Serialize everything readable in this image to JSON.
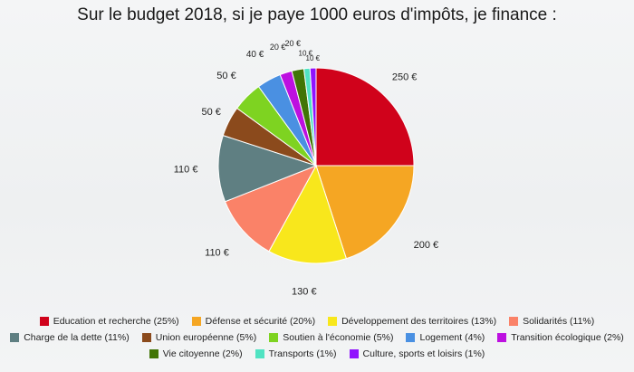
{
  "chart_data": {
    "type": "pie",
    "title": "Sur le budget 2018, si je paye 1000 euros d'impôts, je finance :",
    "unit_suffix": " €",
    "slices": [
      {
        "label": "Education et recherche (25%)",
        "value": 250,
        "data_label": "250 €",
        "color": "#d0021b"
      },
      {
        "label": "Défense et sécurité (20%)",
        "value": 200,
        "data_label": "200 €",
        "color": "#f5a623"
      },
      {
        "label": "Développement des territoires (13%)",
        "value": 130,
        "data_label": "130 €",
        "color": "#f8e71c"
      },
      {
        "label": "Solidarités (11%)",
        "value": 110,
        "data_label": "110 €",
        "color": "#fa8268"
      },
      {
        "label": "Charge de la dette (11%)",
        "value": 110,
        "data_label": "110 €",
        "color": "#5f7f82"
      },
      {
        "label": "Union européenne (5%)",
        "value": 50,
        "data_label": "50 €",
        "color": "#8b4a1c"
      },
      {
        "label": "Soutien à l'économie (5%)",
        "value": 50,
        "data_label": "50 €",
        "color": "#7ed321"
      },
      {
        "label": "Logement (4%)",
        "value": 40,
        "data_label": "40 €",
        "color": "#4a90e2"
      },
      {
        "label": "Transition écologique (2%)",
        "value": 20,
        "data_label": "20 €",
        "color": "#bd10e0"
      },
      {
        "label": "Vie citoyenne (2%)",
        "value": 20,
        "data_label": "20 €",
        "color": "#417505"
      },
      {
        "label": "Transports (1%)",
        "value": 10,
        "data_label": "10 €",
        "color": "#50e3c2"
      },
      {
        "label": "Culture, sports et loisirs (1%)",
        "value": 10,
        "data_label": "10 €",
        "color": "#9013fe"
      }
    ],
    "legend_position": "bottom"
  }
}
